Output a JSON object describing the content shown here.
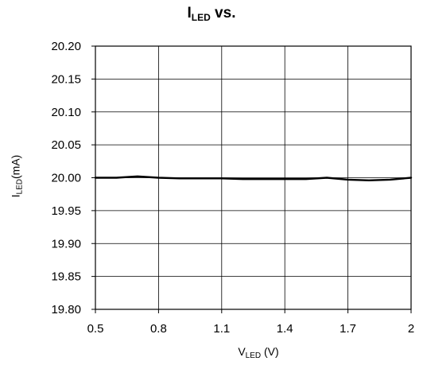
{
  "chart_data": {
    "type": "line",
    "title": {
      "main": "I",
      "sub": "LED",
      "rest": " vs."
    },
    "xlabel": {
      "main": "V",
      "sub": "LED",
      "rest": " (V)"
    },
    "ylabel": {
      "main": "I",
      "sub": "LED",
      "rest": "(mA)"
    },
    "xlim": [
      0.5,
      2.0
    ],
    "ylim": [
      19.8,
      20.2
    ],
    "x_ticks": [
      "0.5",
      "0.8",
      "1.1",
      "1.4",
      "1.7",
      "2"
    ],
    "y_ticks": [
      "20.20",
      "20.15",
      "20.10",
      "20.05",
      "20.00",
      "19.95",
      "19.90",
      "19.85",
      "19.80"
    ],
    "grid": true,
    "series": [
      {
        "x": [
          0.5,
          0.6,
          0.7,
          0.8,
          0.9,
          1.0,
          1.1,
          1.2,
          1.3,
          1.4,
          1.5,
          1.6,
          1.7,
          1.8,
          1.9,
          2.0
        ],
        "y": [
          20.0,
          20.0,
          20.002,
          20.0,
          19.999,
          19.999,
          19.999,
          19.998,
          19.998,
          19.998,
          19.998,
          20.0,
          19.997,
          19.996,
          19.997,
          20.0
        ]
      }
    ],
    "colors": {
      "line": "#000000",
      "grid": "#000000"
    }
  }
}
